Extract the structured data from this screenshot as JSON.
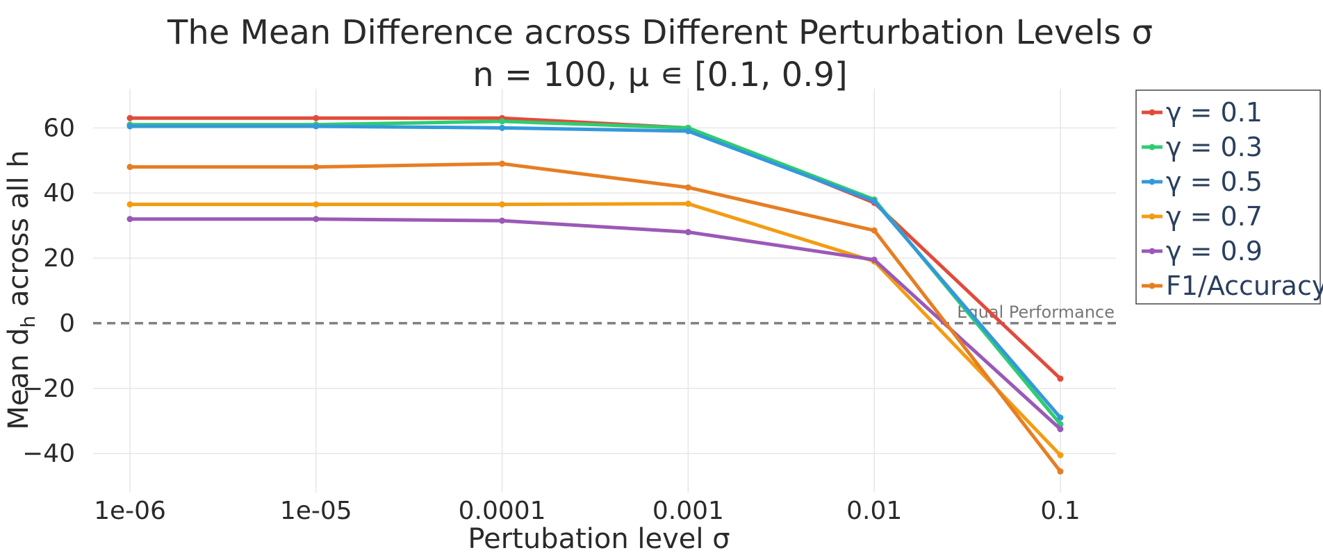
{
  "chart_data": {
    "type": "line",
    "title": "The Mean Difference across Different Perturbation Levels σ",
    "subtitle": "n = 100, μ ∊ [0.1, 0.9]",
    "xlabel": "Pertubation level σ",
    "ylabel_main": "Mean d",
    "ylabel_sub": "h",
    "ylabel_tail": " across all h",
    "categories": [
      "1e-06",
      "1e-05",
      "0.0001",
      "0.001",
      "0.01",
      "0.1"
    ],
    "ylim": [
      -52,
      72
    ],
    "yticks": [
      -40,
      -20,
      0,
      20,
      40,
      60
    ],
    "ytick_labels": [
      "−40",
      "−20",
      "0",
      "20",
      "40",
      "60"
    ],
    "grid": true,
    "legend_position": "top-right",
    "reference_line": {
      "y": 0,
      "label": "Equal Performance",
      "color": "#7f7f7f"
    },
    "series": [
      {
        "name": "γ = 0.1",
        "color": "#e24a3b",
        "values": [
          63,
          63,
          63,
          60,
          37,
          -17
        ]
      },
      {
        "name": "γ = 0.3",
        "color": "#2ecc71",
        "values": [
          61,
          61,
          62,
          60,
          38,
          -31
        ]
      },
      {
        "name": "γ = 0.5",
        "color": "#3498db",
        "values": [
          60.5,
          60.5,
          60,
          59,
          37.5,
          -29
        ]
      },
      {
        "name": "γ = 0.7",
        "color": "#f39c12",
        "values": [
          36.5,
          36.5,
          36.5,
          36.7,
          19,
          -40.5
        ]
      },
      {
        "name": "γ = 0.9",
        "color": "#9b59b6",
        "values": [
          32,
          32,
          31.5,
          28,
          19.5,
          -32.5
        ]
      },
      {
        "name": "F1/Accuracy",
        "color": "#e67e22",
        "values": [
          48,
          48,
          49,
          41.7,
          28.5,
          -45.5
        ]
      }
    ]
  }
}
